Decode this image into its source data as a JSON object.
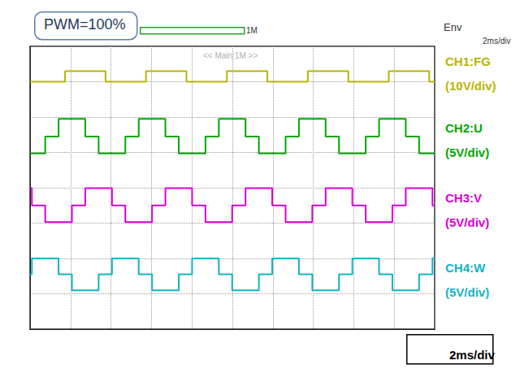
{
  "chart_data": {
    "type": "line",
    "title": "PWM=100%",
    "annotations": [
      "<< Main:1M >>",
      "1M",
      "Env",
      "2ms/div"
    ],
    "footer": "2ms/div",
    "xlim": [
      0,
      20
    ],
    "xticks": [
      0,
      2,
      4,
      6,
      8,
      10,
      12,
      14,
      16,
      18,
      20
    ],
    "ylim": [
      0,
      8
    ],
    "yticks": [
      0,
      1,
      2,
      3,
      4,
      5,
      6,
      7,
      8
    ],
    "grid": true,
    "tick_labels": false,
    "line_style": "step",
    "series": [
      {
        "name": "CH1:FG",
        "annotation": "(10V/div)",
        "color": "#b8b400",
        "x": [
          0,
          1.73,
          3.73,
          5.73,
          7.73,
          9.73,
          11.73,
          13.73,
          15.73,
          17.73,
          19.73,
          20
        ],
        "values": [
          7.0,
          7.3,
          7.0,
          7.3,
          7.0,
          7.3,
          7.0,
          7.3,
          7.0,
          7.3,
          7.0,
          7.0
        ]
      },
      {
        "name": "CH2:U",
        "annotation": "(5V/div)",
        "color": "#00a800",
        "x": [
          0,
          0.75,
          1.41,
          2.73,
          3.39,
          4.71,
          5.37,
          6.69,
          7.35,
          8.67,
          9.33,
          10.65,
          11.31,
          12.63,
          13.29,
          14.61,
          15.27,
          16.59,
          17.25,
          18.57,
          19.23,
          20
        ],
        "values": [
          4.97,
          5.45,
          5.95,
          5.45,
          4.97,
          5.45,
          5.95,
          5.45,
          4.97,
          5.45,
          5.95,
          5.45,
          4.97,
          5.45,
          5.95,
          5.45,
          4.97,
          5.45,
          5.95,
          5.45,
          4.97,
          4.97
        ]
      },
      {
        "name": "CH3:V",
        "annotation": "(5V/div)",
        "color": "#d800d8",
        "x": [
          0,
          0.09,
          0.75,
          2.07,
          2.73,
          4.05,
          4.71,
          6.03,
          6.69,
          8.01,
          8.67,
          9.99,
          10.65,
          11.97,
          12.63,
          13.95,
          14.61,
          15.93,
          16.59,
          17.91,
          18.57,
          19.89,
          20
        ],
        "values": [
          3.99,
          3.5,
          3.03,
          3.5,
          3.99,
          3.5,
          3.03,
          3.5,
          3.99,
          3.5,
          3.03,
          3.5,
          3.99,
          3.5,
          3.03,
          3.5,
          3.99,
          3.5,
          3.03,
          3.5,
          3.99,
          3.5,
          3.5
        ]
      },
      {
        "name": "CH4:W",
        "annotation": "(5V/div)",
        "color": "#10b4c4",
        "x": [
          0,
          0.09,
          1.41,
          2.07,
          3.39,
          4.05,
          5.37,
          6.03,
          7.35,
          8.01,
          9.33,
          9.99,
          11.31,
          11.97,
          13.29,
          13.95,
          15.27,
          15.93,
          17.25,
          17.91,
          19.23,
          19.89,
          20
        ],
        "values": [
          1.55,
          2.0,
          1.55,
          1.1,
          1.55,
          2.0,
          1.55,
          1.1,
          1.55,
          2.0,
          1.55,
          1.1,
          1.55,
          2.0,
          1.55,
          1.1,
          1.55,
          2.0,
          1.55,
          1.1,
          1.55,
          2.0,
          2.0
        ]
      }
    ]
  }
}
